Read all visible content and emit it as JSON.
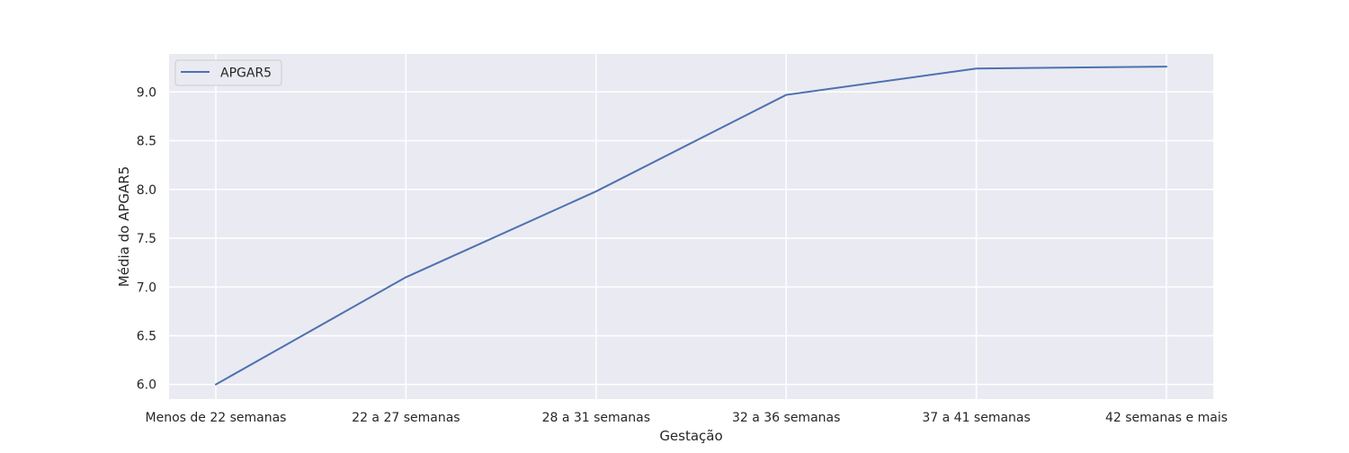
{
  "chart_data": {
    "type": "line",
    "title": "",
    "xlabel": "Gestação",
    "ylabel": "Média do APGAR5",
    "categories": [
      "Menos de 22 semanas",
      "22 a 27 semanas",
      "28 a 31 semanas",
      "32 a 36 semanas",
      "37 a 41 semanas",
      "42 semanas e mais"
    ],
    "series": [
      {
        "name": "APGAR5",
        "values": [
          6.0,
          7.1,
          7.98,
          8.97,
          9.24,
          9.26
        ],
        "color": "#4c72b0"
      }
    ],
    "ylim": [
      5.85,
      9.39
    ],
    "yticks": [
      6.0,
      6.5,
      7.0,
      7.5,
      8.0,
      8.5,
      9.0
    ],
    "ytick_labels": [
      "6.0",
      "6.5",
      "7.0",
      "7.5",
      "8.0",
      "8.5",
      "9.0"
    ],
    "grid": true,
    "legend_position": "top-left",
    "colors": {
      "plot_background": "#eaeaf2",
      "grid": "#ffffff",
      "text": "#262626"
    }
  }
}
